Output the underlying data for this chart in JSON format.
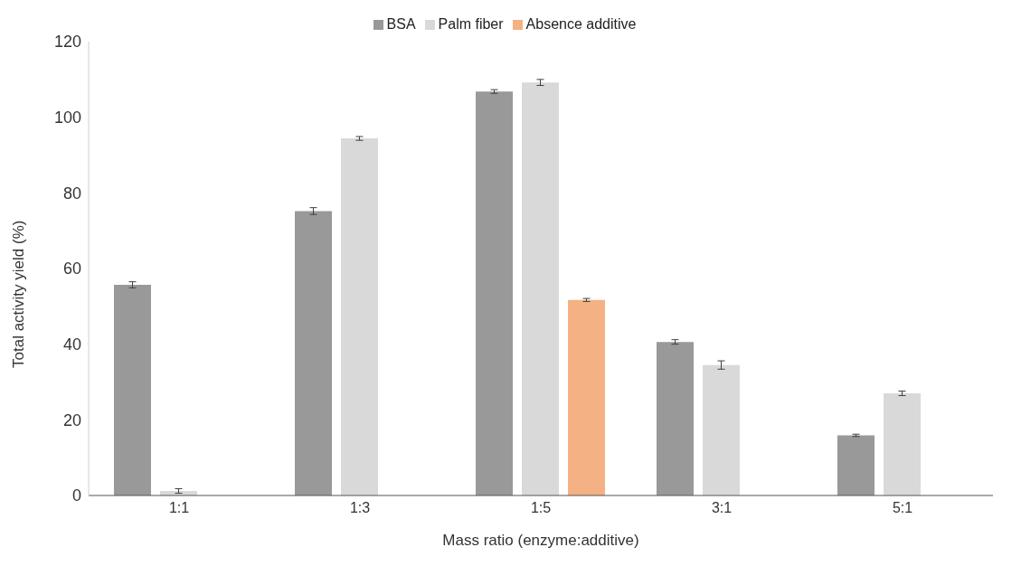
{
  "chart_data": {
    "type": "bar",
    "xlabel": "Mass ratio (enzyme:additive)",
    "ylabel": "Total activity yield (%)",
    "categories": [
      "1:1",
      "1:3",
      "1:5",
      "3:1",
      "5:1"
    ],
    "series": [
      {
        "name": "BSA",
        "color": "#999999",
        "values": [
          55.7,
          75.2,
          106.8,
          40.6,
          15.9
        ],
        "errors": [
          0.8,
          0.9,
          0.5,
          0.6,
          0.3
        ]
      },
      {
        "name": "Palm fiber",
        "color": "#d9d9d9",
        "values": [
          1.2,
          94.4,
          109.2,
          34.5,
          27.0
        ],
        "errors": [
          0.6,
          0.5,
          0.8,
          1.1,
          0.6
        ]
      },
      {
        "name": "Absence additive",
        "color": "#f4b183",
        "values": [
          null,
          null,
          51.7,
          null,
          null
        ],
        "errors": [
          null,
          null,
          0.4,
          null,
          null
        ]
      }
    ],
    "ylim": [
      0,
      120
    ],
    "yticks": [
      0,
      20,
      40,
      60,
      80,
      100,
      120
    ],
    "grid": false,
    "legend": "top"
  }
}
